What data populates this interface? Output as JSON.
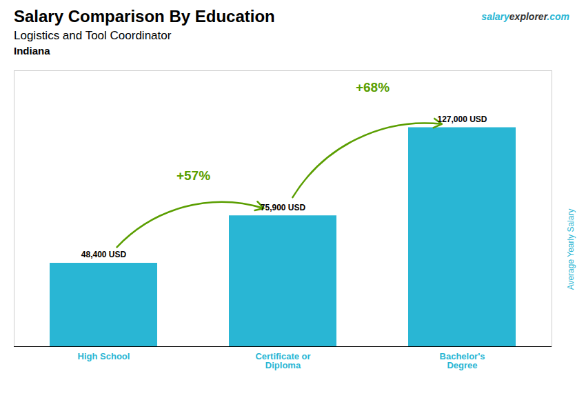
{
  "chart_data": {
    "type": "bar",
    "title": "Salary Comparison By Education",
    "subtitle": "Logistics and Tool Coordinator",
    "location": "Indiana",
    "watermark": [
      "salary",
      "explorer",
      ".com"
    ],
    "ylabel": "Average Yearly Salary",
    "categories": [
      "High School",
      "Certificate or\nDiploma",
      "Bachelor's\nDegree"
    ],
    "values": [
      48400,
      75900,
      127000
    ],
    "value_labels": [
      "48,400 USD",
      "75,900 USD",
      "127,000 USD"
    ],
    "data_labels": true,
    "annotations": [
      "+57%",
      "+68%"
    ],
    "color": "#29b6d4",
    "ylim": [
      0,
      160000
    ],
    "yticks": [],
    "tick_labels": "x",
    "grid": false
  }
}
